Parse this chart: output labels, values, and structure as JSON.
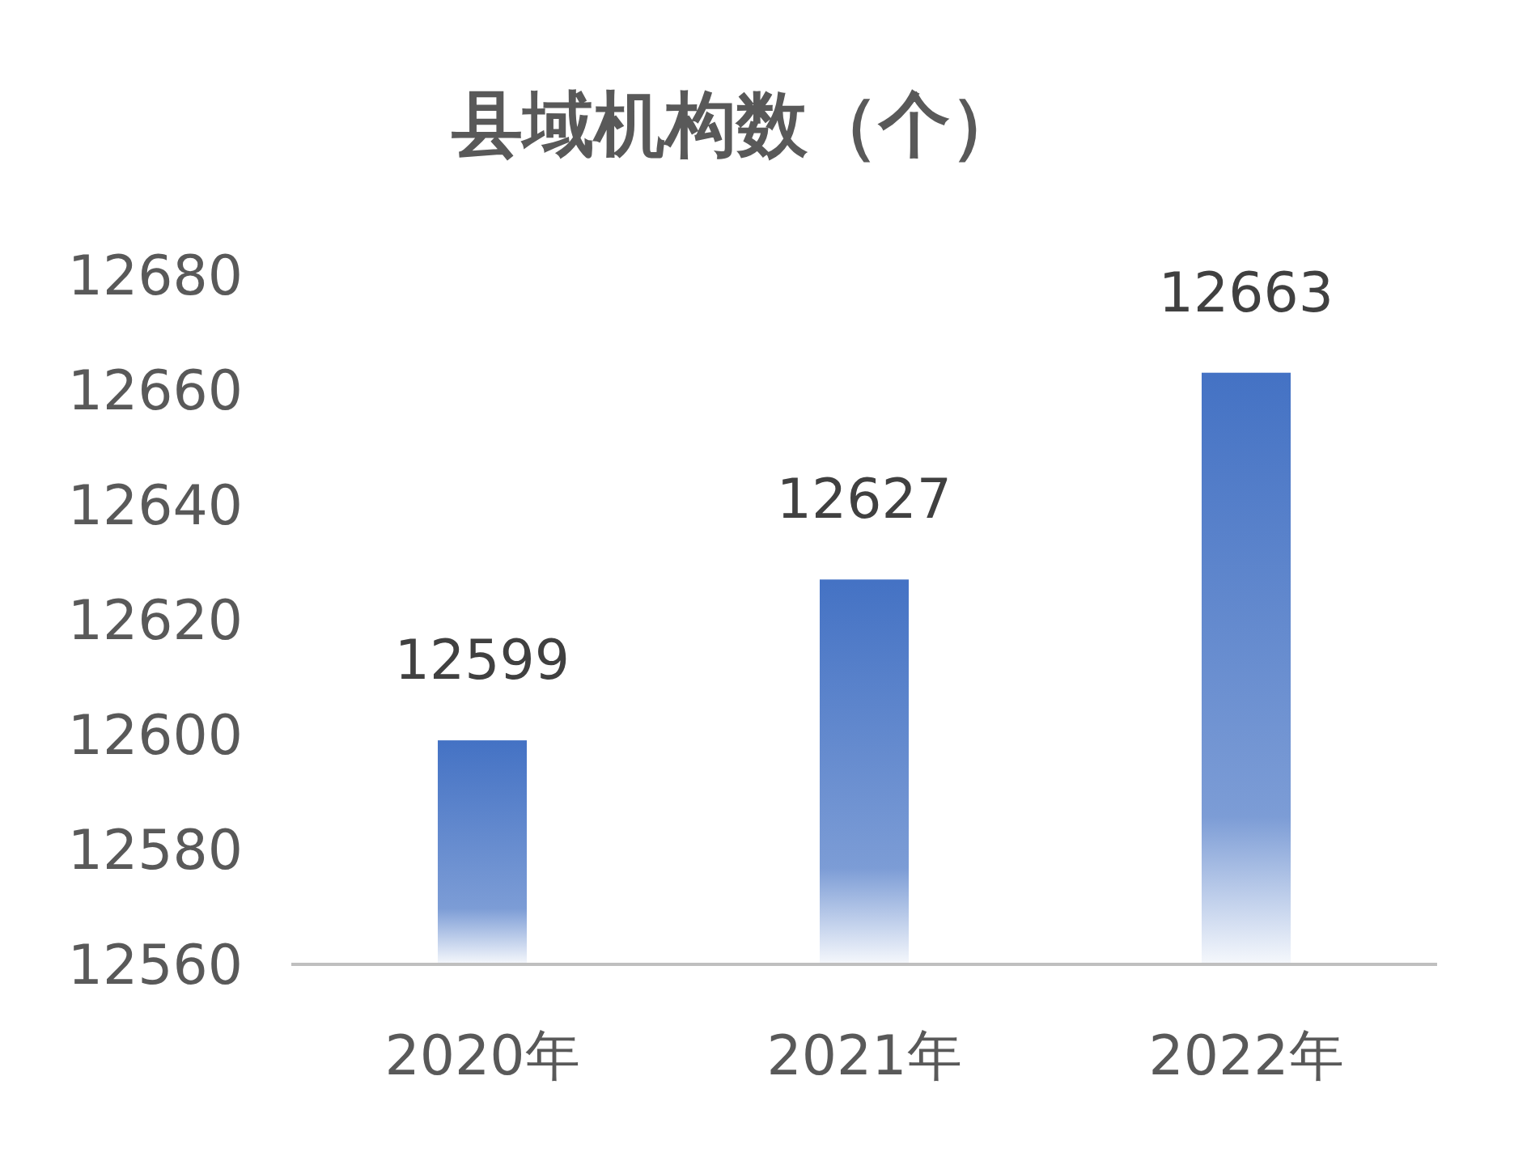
{
  "chart_data": {
    "type": "bar",
    "title": "县域机构数（个）",
    "categories": [
      "2020年",
      "2021年",
      "2022年"
    ],
    "values": [
      12599,
      12627,
      12663
    ],
    "color": "#4472c4",
    "ylim": [
      12560,
      12680
    ],
    "yticks": [
      12560,
      12580,
      12600,
      12620,
      12640,
      12660,
      12680
    ],
    "data_labels": true
  }
}
